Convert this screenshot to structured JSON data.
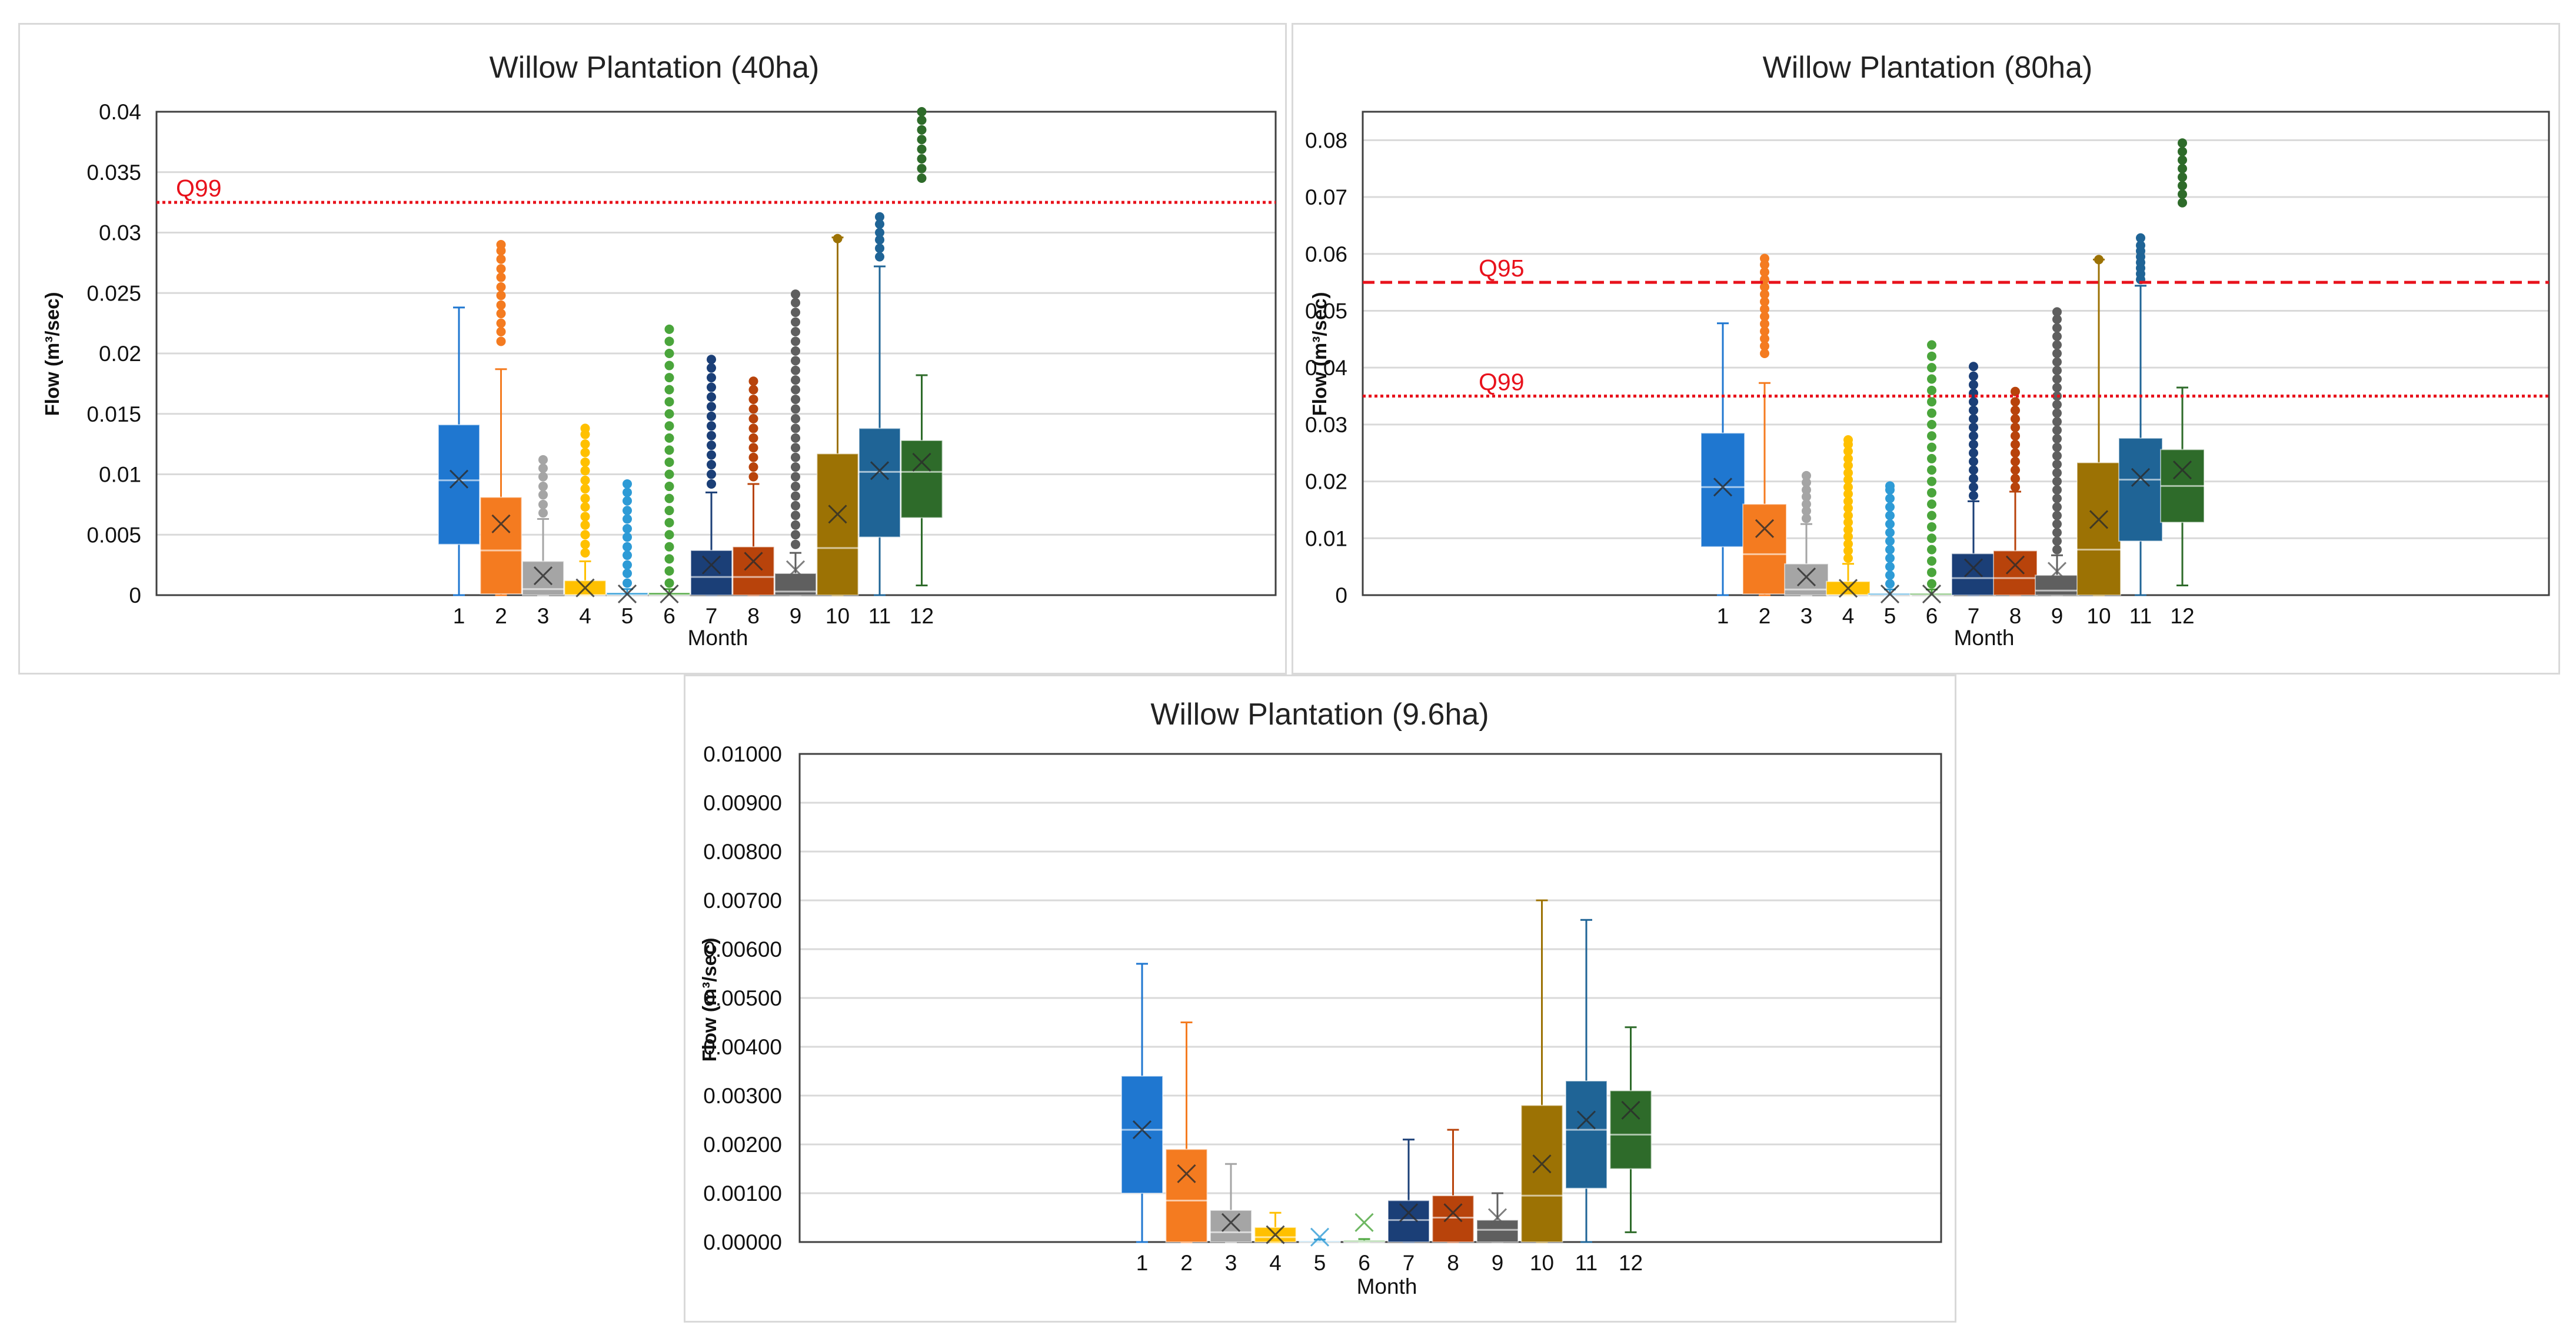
{
  "colors": [
    "#1f77d0",
    "#f47b20",
    "#a5a5a5",
    "#ffc000",
    "#2e9bd6",
    "#4aa53b",
    "#1b3f77",
    "#b8430b",
    "#5f5f5f",
    "#9c7204",
    "#1f6496",
    "#2e6b2a"
  ],
  "chart_data": [
    {
      "type": "box",
      "title": "Willow Plantation (40ha)",
      "xlabel": "Month",
      "ylabel": "Flow (m³/sec)",
      "ylim": [
        0,
        0.04
      ],
      "yticks": [
        "0",
        "0.005",
        "0.01",
        "0.015",
        "0.02",
        "0.025",
        "0.03",
        "0.035",
        "0.04"
      ],
      "categories": [
        "1",
        "2",
        "3",
        "4",
        "5",
        "6",
        "7",
        "8",
        "9",
        "10",
        "11",
        "12"
      ],
      "grid": true,
      "reference_lines": [
        {
          "label": "Q99",
          "value": 0.0325,
          "style": "dotted"
        }
      ],
      "boxes": [
        {
          "min": 0,
          "q1": 0.0042,
          "median": 0.0095,
          "q3": 0.0141,
          "max": 0.0238,
          "mean": 0.0096,
          "outliers": []
        },
        {
          "min": 0,
          "q1": 0.0001,
          "median": 0.0037,
          "q3": 0.0081,
          "max": 0.0187,
          "mean": 0.0059,
          "outliers": [
            0.021,
            0.0218,
            0.0225,
            0.0233,
            0.024,
            0.0248,
            0.0255,
            0.0263,
            0.027,
            0.0278,
            0.0285,
            0.029
          ]
        },
        {
          "min": 0,
          "q1": 0,
          "median": 0.0005,
          "q3": 0.0028,
          "max": 0.0063,
          "mean": 0.0016,
          "outliers": [
            0.0068,
            0.0075,
            0.0083,
            0.009,
            0.0098,
            0.0105,
            0.0112
          ]
        },
        {
          "min": 0,
          "q1": 0,
          "median": 0,
          "q3": 0.0012,
          "max": 0.0028,
          "mean": 0.0006,
          "outliers": [
            0.0035,
            0.0042,
            0.005,
            0.0058,
            0.0065,
            0.0073,
            0.008,
            0.0088,
            0.0095,
            0.0103,
            0.011,
            0.0118,
            0.0125,
            0.0133,
            0.0138
          ]
        },
        {
          "min": 0,
          "q1": 0,
          "median": 0,
          "q3": 0.0002,
          "max": 0.0005,
          "mean": 0.0001,
          "outliers": [
            0.001,
            0.0018,
            0.0025,
            0.0033,
            0.004,
            0.0048,
            0.0055,
            0.0063,
            0.007,
            0.0078,
            0.0085,
            0.0092
          ]
        },
        {
          "min": 0,
          "q1": 0,
          "median": 0,
          "q3": 0.0002,
          "max": 0.0005,
          "mean": 0.0001,
          "outliers": [
            0.001,
            0.002,
            0.003,
            0.004,
            0.005,
            0.006,
            0.007,
            0.008,
            0.009,
            0.01,
            0.011,
            0.012,
            0.013,
            0.014,
            0.015,
            0.016,
            0.017,
            0.018,
            0.019,
            0.02,
            0.021,
            0.022
          ]
        },
        {
          "min": 0,
          "q1": 0,
          "median": 0.0015,
          "q3": 0.0037,
          "max": 0.0085,
          "mean": 0.0025,
          "outliers": [
            0.0092,
            0.01,
            0.0108,
            0.0116,
            0.0124,
            0.0132,
            0.014,
            0.0148,
            0.0156,
            0.0164,
            0.0172,
            0.018,
            0.0188,
            0.0195
          ]
        },
        {
          "min": 0,
          "q1": 0,
          "median": 0.0015,
          "q3": 0.004,
          "max": 0.0092,
          "mean": 0.0028,
          "outliers": [
            0.0098,
            0.0106,
            0.0114,
            0.0122,
            0.013,
            0.0138,
            0.0146,
            0.0154,
            0.0162,
            0.017,
            0.0177
          ]
        },
        {
          "min": 0,
          "q1": 0,
          "median": 0.0003,
          "q3": 0.0018,
          "max": 0.0035,
          "mean": 0.0021,
          "outliers": [
            0.0042,
            0.005,
            0.0058,
            0.0066,
            0.0074,
            0.0082,
            0.009,
            0.0098,
            0.0106,
            0.0114,
            0.0122,
            0.013,
            0.0138,
            0.0146,
            0.0154,
            0.0162,
            0.017,
            0.0178,
            0.0186,
            0.0194,
            0.0202,
            0.021,
            0.0218,
            0.0226,
            0.0234,
            0.0242,
            0.0249
          ]
        },
        {
          "min": 0,
          "q1": 0,
          "median": 0.0039,
          "q3": 0.0117,
          "max": 0.0296,
          "mean": 0.0067,
          "outliers": [
            0.0295
          ]
        },
        {
          "min": 0,
          "q1": 0.0048,
          "median": 0.0102,
          "q3": 0.0138,
          "max": 0.0272,
          "mean": 0.0103,
          "outliers": [
            0.028,
            0.0287,
            0.0294,
            0.03,
            0.0307,
            0.0313
          ]
        },
        {
          "min": 0.0008,
          "q1": 0.0064,
          "median": 0.0102,
          "q3": 0.0128,
          "max": 0.0182,
          "mean": 0.011,
          "outliers": [
            0.0345,
            0.0353,
            0.0361,
            0.0369,
            0.0377,
            0.0385,
            0.0393,
            0.04
          ]
        }
      ]
    },
    {
      "type": "box",
      "title": "Willow Plantation (80ha)",
      "xlabel": "Month",
      "ylabel": "Flow (m³/sec)",
      "ylim": [
        0,
        0.085
      ],
      "yticks": [
        "0",
        "0.01",
        "0.02",
        "0.03",
        "0.04",
        "0.05",
        "0.06",
        "0.07",
        "0.08"
      ],
      "categories": [
        "1",
        "2",
        "3",
        "4",
        "5",
        "6",
        "7",
        "8",
        "9",
        "10",
        "11",
        "12"
      ],
      "grid": true,
      "reference_lines": [
        {
          "label": "Q95",
          "value": 0.055,
          "style": "dashed"
        },
        {
          "label": "Q99",
          "value": 0.035,
          "style": "dotted"
        }
      ],
      "boxes": [
        {
          "min": 0,
          "q1": 0.0085,
          "median": 0.019,
          "q3": 0.0285,
          "max": 0.0478,
          "mean": 0.019,
          "outliers": []
        },
        {
          "min": 0,
          "q1": 0.0002,
          "median": 0.0072,
          "q3": 0.016,
          "max": 0.0373,
          "mean": 0.0117,
          "outliers": [
            0.0425,
            0.0438,
            0.0451,
            0.0464,
            0.0477,
            0.049,
            0.0503,
            0.0516,
            0.0529,
            0.0542,
            0.0555,
            0.0568,
            0.0581,
            0.0592
          ]
        },
        {
          "min": 0,
          "q1": 0,
          "median": 0.001,
          "q3": 0.0055,
          "max": 0.0125,
          "mean": 0.0032,
          "outliers": [
            0.0135,
            0.0148,
            0.016,
            0.0173,
            0.0185,
            0.0198,
            0.021
          ]
        },
        {
          "min": 0,
          "q1": 0,
          "median": 0,
          "q3": 0.0024,
          "max": 0.0055,
          "mean": 0.0012,
          "outliers": [
            0.0065,
            0.0078,
            0.009,
            0.0103,
            0.0115,
            0.0128,
            0.014,
            0.0153,
            0.0165,
            0.0178,
            0.019,
            0.0203,
            0.0215,
            0.0228,
            0.024,
            0.0253,
            0.0265,
            0.0273
          ]
        },
        {
          "min": 0,
          "q1": 0,
          "median": 0,
          "q3": 0.0003,
          "max": 0.001,
          "mean": 0.0002,
          "outliers": [
            0.002,
            0.0035,
            0.005,
            0.0065,
            0.008,
            0.0095,
            0.011,
            0.0125,
            0.014,
            0.0155,
            0.017,
            0.0185,
            0.0192
          ]
        },
        {
          "min": 0,
          "q1": 0,
          "median": 0,
          "q3": 0.0003,
          "max": 0.001,
          "mean": 0.0002,
          "outliers": [
            0.002,
            0.004,
            0.006,
            0.008,
            0.01,
            0.012,
            0.014,
            0.016,
            0.018,
            0.02,
            0.022,
            0.024,
            0.026,
            0.028,
            0.03,
            0.032,
            0.034,
            0.036,
            0.038,
            0.04,
            0.042,
            0.044
          ]
        },
        {
          "min": 0,
          "q1": 0,
          "median": 0.003,
          "q3": 0.0073,
          "max": 0.0165,
          "mean": 0.0048,
          "outliers": [
            0.0175,
            0.019,
            0.0205,
            0.022,
            0.0235,
            0.025,
            0.0265,
            0.028,
            0.0295,
            0.031,
            0.0325,
            0.034,
            0.0355,
            0.037,
            0.0385,
            0.0402
          ]
        },
        {
          "min": 0,
          "q1": 0,
          "median": 0.003,
          "q3": 0.0078,
          "max": 0.0182,
          "mean": 0.0053,
          "outliers": [
            0.019,
            0.0205,
            0.022,
            0.0235,
            0.025,
            0.0265,
            0.028,
            0.0295,
            0.031,
            0.0325,
            0.034,
            0.0358
          ]
        },
        {
          "min": 0,
          "q1": 0,
          "median": 0.0008,
          "q3": 0.0035,
          "max": 0.007,
          "mean": 0.0042,
          "outliers": [
            0.008,
            0.0095,
            0.011,
            0.0125,
            0.014,
            0.0155,
            0.017,
            0.0185,
            0.02,
            0.0215,
            0.023,
            0.0245,
            0.026,
            0.0275,
            0.029,
            0.0305,
            0.032,
            0.0335,
            0.035,
            0.0365,
            0.038,
            0.0395,
            0.041,
            0.0425,
            0.044,
            0.0455,
            0.047,
            0.0485,
            0.0498
          ]
        },
        {
          "min": 0,
          "q1": 0,
          "median": 0.008,
          "q3": 0.0233,
          "max": 0.059,
          "mean": 0.0133,
          "outliers": [
            0.059
          ]
        },
        {
          "min": 0,
          "q1": 0.0095,
          "median": 0.0203,
          "q3": 0.0276,
          "max": 0.0544,
          "mean": 0.0207,
          "outliers": [
            0.0555,
            0.0565,
            0.0575,
            0.0585,
            0.0595,
            0.0605,
            0.0615,
            0.0628
          ]
        },
        {
          "min": 0.0017,
          "q1": 0.0128,
          "median": 0.0192,
          "q3": 0.0256,
          "max": 0.0365,
          "mean": 0.022,
          "outliers": [
            0.069,
            0.0705,
            0.072,
            0.0735,
            0.075,
            0.0765,
            0.078,
            0.0795
          ]
        }
      ]
    },
    {
      "type": "box",
      "title": "Willow Plantation (9.6ha)",
      "xlabel": "Month",
      "ylabel": "Flow (m³/sec)",
      "ylim": [
        0,
        0.01
      ],
      "yticks": [
        "0.00000",
        "0.00100",
        "0.00200",
        "0.00300",
        "0.00400",
        "0.00500",
        "0.00600",
        "0.00700",
        "0.00800",
        "0.00900",
        "0.01000"
      ],
      "categories": [
        "1",
        "2",
        "3",
        "4",
        "5",
        "6",
        "7",
        "8",
        "9",
        "10",
        "11",
        "12"
      ],
      "grid": true,
      "reference_lines": [],
      "boxes": [
        {
          "min": 0,
          "q1": 0.001,
          "median": 0.0023,
          "q3": 0.0034,
          "max": 0.0057,
          "mean": 0.0023,
          "outliers": []
        },
        {
          "min": 0,
          "q1": 0,
          "median": 0.00085,
          "q3": 0.0019,
          "max": 0.0045,
          "mean": 0.0014,
          "outliers": []
        },
        {
          "min": 0,
          "q1": 0,
          "median": 0.0002,
          "q3": 0.00065,
          "max": 0.0016,
          "mean": 0.0004,
          "outliers": []
        },
        {
          "min": 0,
          "q1": 0,
          "median": 0.0001,
          "q3": 0.0003,
          "max": 0.0006,
          "mean": 0.00015,
          "outliers": []
        },
        {
          "min": 0,
          "q1": 0,
          "median": 0,
          "q3": 2e-05,
          "max": 5e-05,
          "mean": 0.0001,
          "outliers": []
        },
        {
          "min": 0,
          "q1": 0,
          "median": 0,
          "q3": 3e-05,
          "max": 6e-05,
          "mean": 0.0004,
          "outliers": []
        },
        {
          "min": 0,
          "q1": 0,
          "median": 0.00045,
          "q3": 0.00085,
          "max": 0.0021,
          "mean": 0.0006,
          "outliers": []
        },
        {
          "min": 0,
          "q1": 0,
          "median": 0.0005,
          "q3": 0.00095,
          "max": 0.0023,
          "mean": 0.0006,
          "outliers": []
        },
        {
          "min": 0,
          "q1": 0,
          "median": 0.00025,
          "q3": 0.00045,
          "max": 0.001,
          "mean": 0.0005,
          "outliers": []
        },
        {
          "min": 0,
          "q1": 0,
          "median": 0.00095,
          "q3": 0.0028,
          "max": 0.007,
          "mean": 0.0016,
          "outliers": []
        },
        {
          "min": 0,
          "q1": 0.0011,
          "median": 0.0023,
          "q3": 0.0033,
          "max": 0.0066,
          "mean": 0.0025,
          "outliers": []
        },
        {
          "min": 0.0002,
          "q1": 0.0015,
          "median": 0.0022,
          "q3": 0.0031,
          "max": 0.0044,
          "mean": 0.0027,
          "outliers": []
        }
      ]
    }
  ]
}
